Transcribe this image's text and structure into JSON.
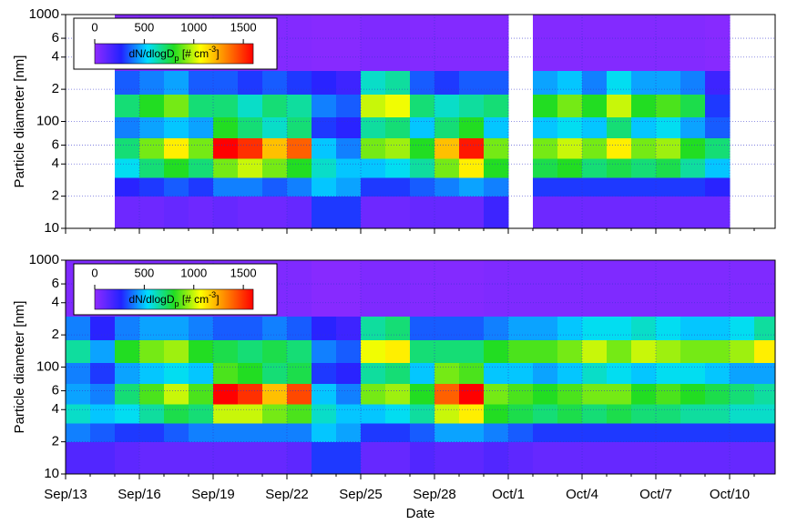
{
  "chart_data": [
    {
      "type": "heatmap",
      "ylabel": "Particle diameter [nm]",
      "log_y": true,
      "ylim": [
        10,
        1000
      ],
      "yticks": [
        10,
        {
          "value": 20,
          "label": "2"
        },
        {
          "value": 40,
          "label": "4"
        },
        {
          "value": 60,
          "label": "6"
        },
        100,
        {
          "value": 200,
          "label": "2"
        },
        {
          "value": 400,
          "label": "4"
        },
        {
          "value": 600,
          "label": "6"
        },
        1000
      ],
      "grid": true,
      "grid_color": "#3333cc",
      "categories": [
        null,
        null,
        null,
        null,
        null,
        null,
        null,
        null,
        null,
        null,
        null,
        null,
        null,
        null,
        null,
        null,
        null,
        null,
        null,
        null,
        null,
        null,
        null,
        null,
        null,
        null,
        null,
        null,
        null
      ],
      "y_bins": [
        10,
        20,
        30,
        45,
        70,
        110,
        180,
        300,
        1000
      ],
      "values": [
        [
          null,
          null,
          80,
          80,
          100,
          80,
          100,
          80,
          80,
          100,
          300,
          300,
          80,
          80,
          100,
          100,
          100,
          200,
          null,
          80,
          80,
          80,
          80,
          80,
          80,
          80,
          80,
          null,
          null
        ],
        [
          null,
          null,
          250,
          300,
          350,
          300,
          400,
          400,
          350,
          400,
          500,
          450,
          300,
          300,
          350,
          400,
          450,
          400,
          null,
          300,
          300,
          300,
          300,
          300,
          300,
          300,
          250,
          null,
          null
        ],
        [
          null,
          null,
          550,
          700,
          800,
          700,
          900,
          1000,
          900,
          800,
          600,
          500,
          500,
          550,
          650,
          900,
          1100,
          800,
          null,
          750,
          800,
          700,
          750,
          700,
          750,
          650,
          500,
          null,
          null
        ],
        [
          null,
          null,
          700,
          900,
          1100,
          900,
          1600,
          1500,
          1200,
          1400,
          500,
          400,
          900,
          950,
          800,
          1200,
          1550,
          900,
          null,
          900,
          1000,
          900,
          1100,
          900,
          950,
          800,
          700,
          null,
          null
        ],
        [
          null,
          null,
          400,
          450,
          500,
          450,
          800,
          700,
          600,
          700,
          300,
          250,
          650,
          700,
          500,
          700,
          800,
          500,
          null,
          500,
          550,
          500,
          700,
          500,
          550,
          450,
          350,
          null,
          null
        ],
        [
          null,
          null,
          700,
          800,
          900,
          700,
          700,
          600,
          700,
          650,
          400,
          350,
          1000,
          1050,
          700,
          600,
          650,
          700,
          null,
          800,
          900,
          800,
          1000,
          800,
          850,
          750,
          300,
          null,
          null
        ],
        [
          null,
          null,
          350,
          400,
          450,
          350,
          350,
          300,
          350,
          300,
          250,
          200,
          600,
          650,
          350,
          300,
          350,
          350,
          null,
          450,
          500,
          400,
          550,
          450,
          450,
          400,
          200,
          null,
          null
        ],
        [
          null,
          null,
          30,
          30,
          30,
          30,
          40,
          30,
          30,
          30,
          20,
          20,
          40,
          40,
          30,
          30,
          30,
          30,
          null,
          30,
          30,
          30,
          30,
          30,
          30,
          30,
          20,
          null,
          null
        ]
      ],
      "zlim": [
        0,
        1600
      ],
      "zticks": [
        0,
        500,
        1000,
        1500
      ],
      "colormap": [
        "#8f2bff",
        "#2222ff",
        "#00ddff",
        "#22dd22",
        "#ffff00",
        "#ff8000",
        "#ff0000"
      ],
      "colorbar_label": [
        "dN/dlogD",
        "p",
        " [# cm",
        "-3",
        "]"
      ]
    },
    {
      "type": "heatmap",
      "ylabel": "Particle diameter [nm]",
      "xlabel": "Date",
      "log_y": true,
      "ylim": [
        10,
        1000
      ],
      "yticks": [
        10,
        {
          "value": 20,
          "label": "2"
        },
        {
          "value": 40,
          "label": "4"
        },
        {
          "value": 60,
          "label": "6"
        },
        100,
        {
          "value": 200,
          "label": "2"
        },
        {
          "value": 400,
          "label": "4"
        },
        {
          "value": 600,
          "label": "6"
        },
        1000
      ],
      "grid": true,
      "grid_color": "#3333cc",
      "categories": [
        "Sep/13",
        null,
        null,
        "Sep/16",
        null,
        null,
        "Sep/19",
        null,
        null,
        "Sep/22",
        null,
        null,
        "Sep/25",
        null,
        null,
        "Sep/28",
        null,
        null,
        "Oct/1",
        null,
        null,
        "Oct/4",
        null,
        null,
        "Oct/7",
        null,
        null,
        "Oct/10",
        null
      ],
      "y_bins": [
        10,
        20,
        30,
        45,
        70,
        110,
        180,
        300,
        1000
      ],
      "values": [
        [
          150,
          150,
          120,
          100,
          100,
          100,
          100,
          100,
          100,
          120,
          300,
          300,
          100,
          100,
          150,
          120,
          120,
          150,
          120,
          100,
          100,
          100,
          100,
          100,
          100,
          100,
          100,
          100,
          100
        ],
        [
          400,
          350,
          300,
          300,
          350,
          400,
          400,
          400,
          400,
          400,
          500,
          450,
          300,
          300,
          350,
          450,
          450,
          400,
          350,
          300,
          300,
          300,
          300,
          300,
          300,
          300,
          300,
          300,
          300
        ],
        [
          600,
          500,
          550,
          650,
          750,
          700,
          1000,
          1000,
          900,
          850,
          600,
          500,
          500,
          550,
          650,
          1000,
          1100,
          800,
          750,
          700,
          750,
          700,
          750,
          700,
          700,
          650,
          650,
          600,
          600
        ],
        [
          450,
          400,
          700,
          850,
          1000,
          850,
          1600,
          1500,
          1200,
          1450,
          500,
          400,
          900,
          950,
          800,
          1400,
          1600,
          900,
          850,
          800,
          850,
          900,
          900,
          800,
          850,
          800,
          750,
          700,
          650
        ],
        [
          400,
          300,
          450,
          500,
          550,
          500,
          850,
          800,
          700,
          750,
          300,
          250,
          650,
          700,
          500,
          900,
          850,
          500,
          500,
          450,
          500,
          600,
          550,
          500,
          550,
          550,
          500,
          450,
          450
        ],
        [
          650,
          450,
          800,
          900,
          950,
          800,
          750,
          700,
          750,
          700,
          400,
          350,
          1050,
          1100,
          700,
          700,
          700,
          800,
          850,
          850,
          900,
          1000,
          900,
          1000,
          950,
          900,
          900,
          950,
          1100
        ],
        [
          400,
          250,
          400,
          450,
          450,
          400,
          350,
          350,
          400,
          350,
          250,
          200,
          650,
          700,
          350,
          350,
          350,
          400,
          450,
          450,
          500,
          550,
          550,
          600,
          550,
          500,
          500,
          550,
          650
        ],
        [
          40,
          30,
          40,
          40,
          40,
          40,
          40,
          40,
          40,
          40,
          20,
          20,
          40,
          40,
          30,
          30,
          30,
          40,
          40,
          40,
          40,
          40,
          40,
          40,
          40,
          40,
          40,
          40,
          40
        ]
      ],
      "zlim": [
        0,
        1600
      ],
      "zticks": [
        0,
        500,
        1000,
        1500
      ],
      "colormap": [
        "#8f2bff",
        "#2222ff",
        "#00ddff",
        "#22dd22",
        "#ffff00",
        "#ff8000",
        "#ff0000"
      ],
      "colorbar_label": [
        "dN/dlogD",
        "p",
        " [# cm",
        "-3",
        "]"
      ]
    }
  ]
}
